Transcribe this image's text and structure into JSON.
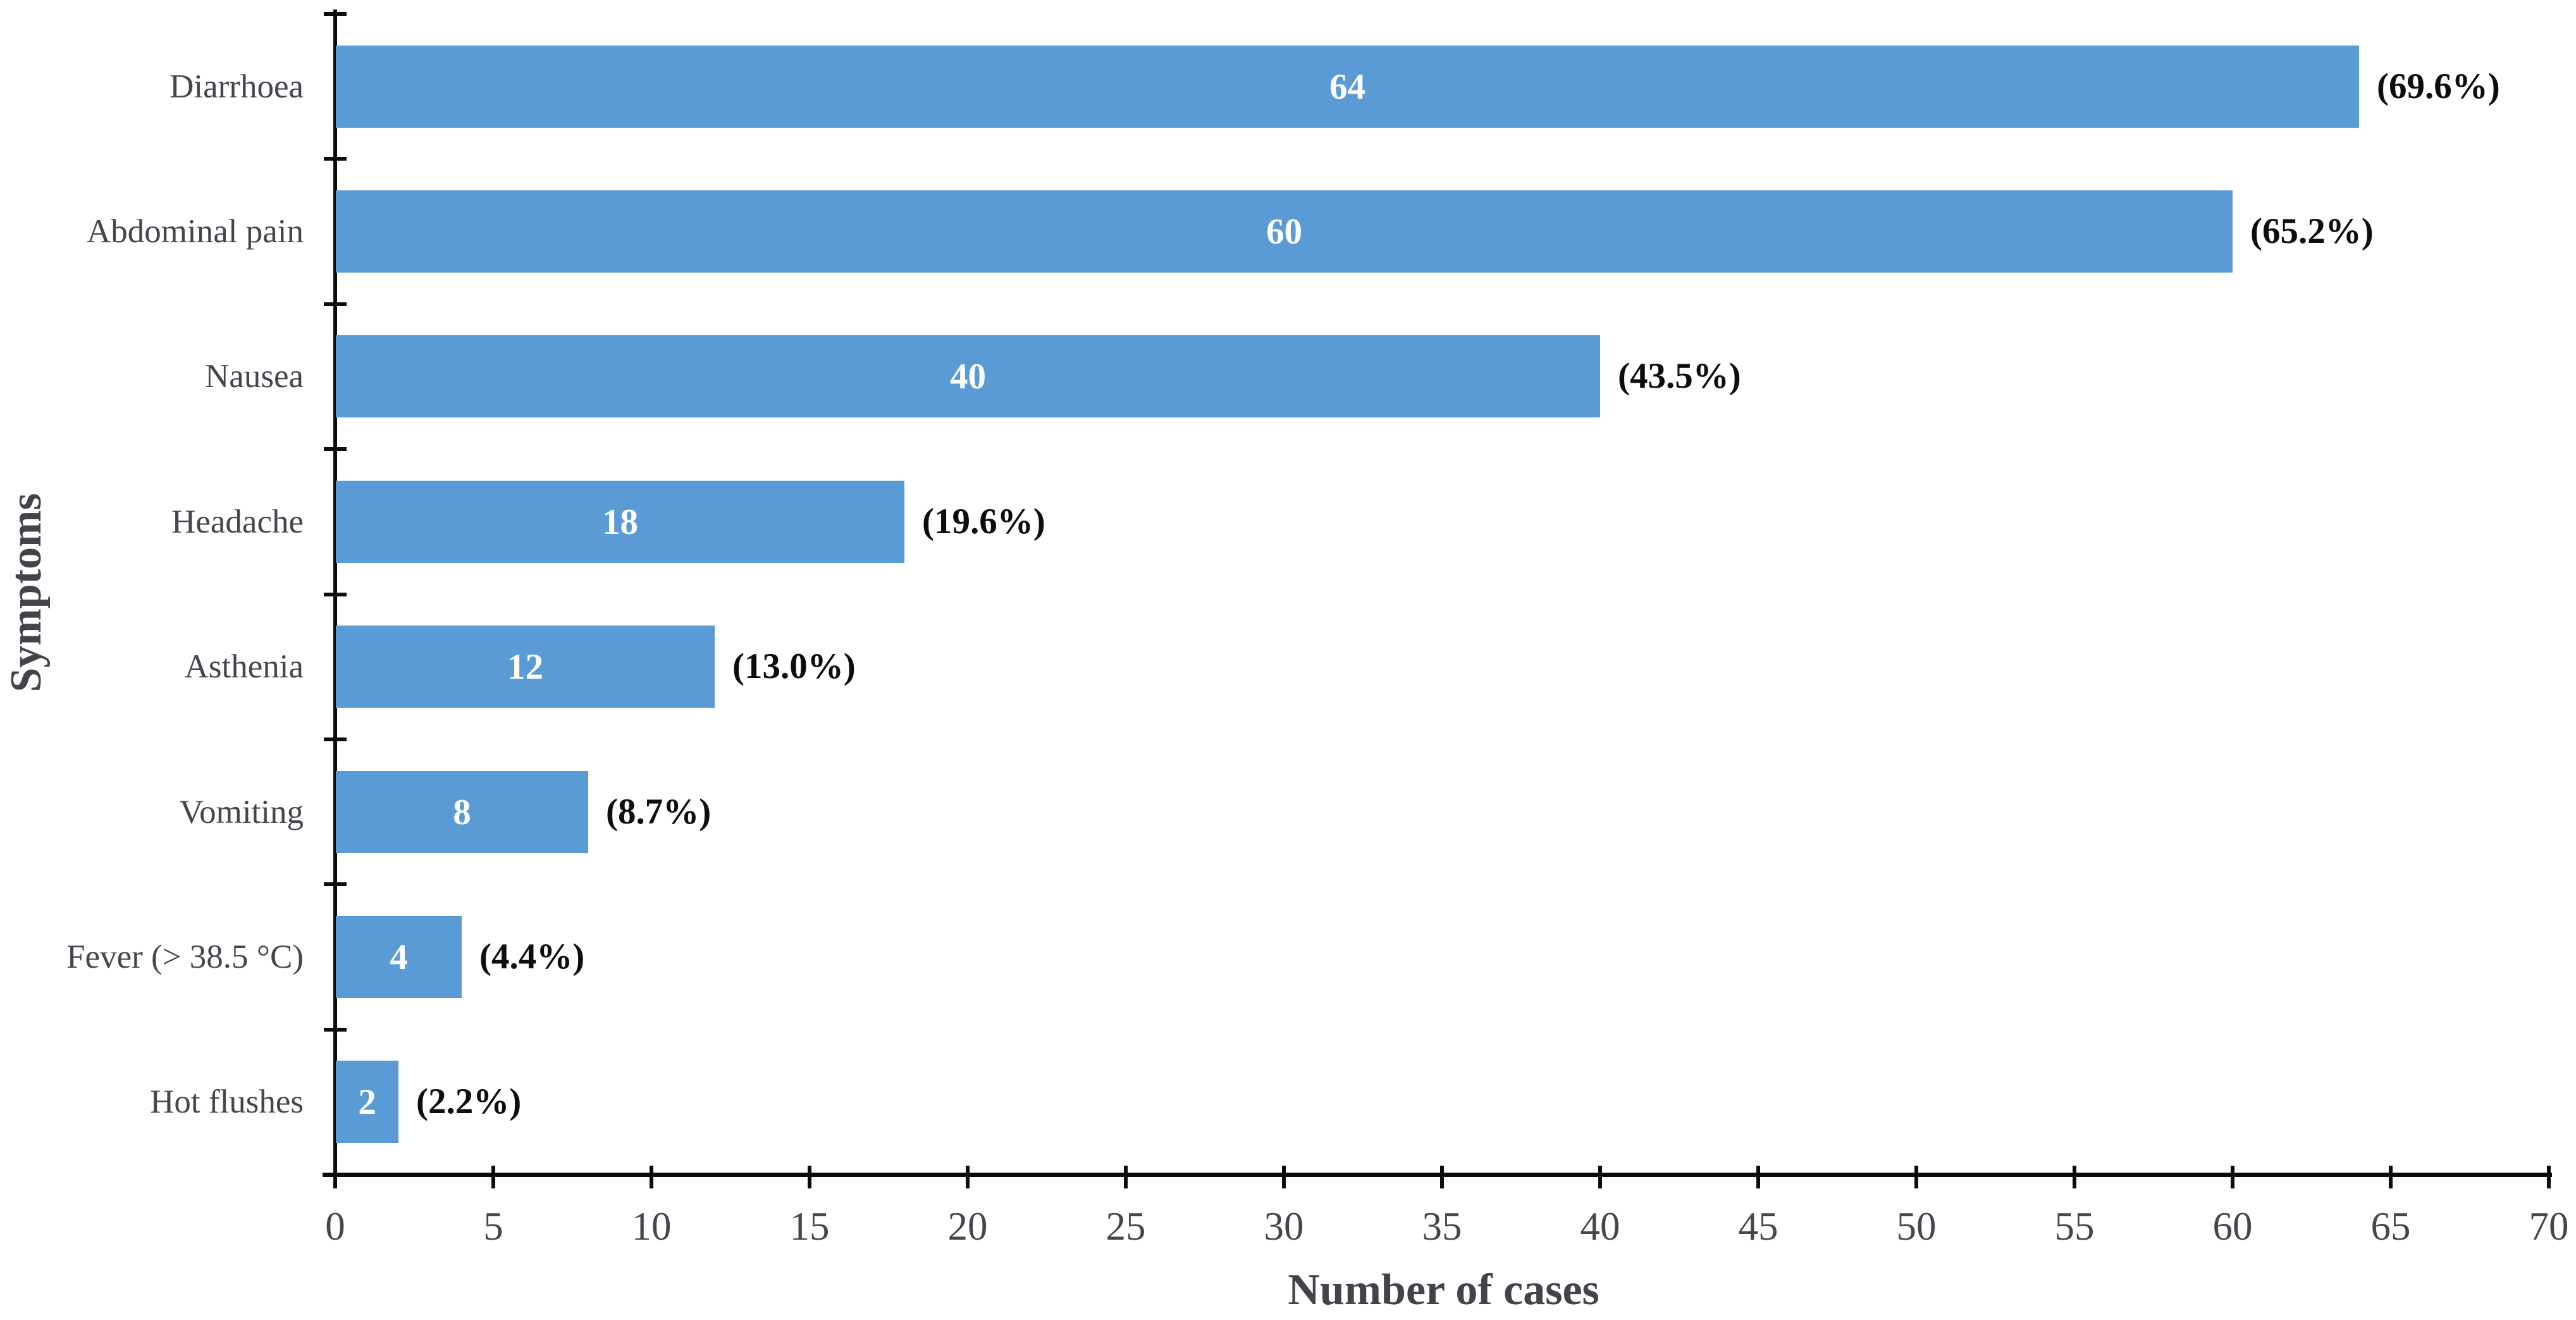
{
  "figure": {
    "background": "#ffffff"
  },
  "chart_data": {
    "type": "bar",
    "orientation": "horizontal",
    "title": "",
    "xlabel": "Number of cases",
    "ylabel": "Symptoms",
    "categories": [
      "Diarrhoea",
      "Abdominal pain",
      "Nausea",
      "Headache",
      "Asthenia",
      "Vomiting",
      "Fever (> 38.5 °C)",
      "Hot flushes"
    ],
    "values": [
      64,
      60,
      40,
      18,
      12,
      8,
      4,
      2
    ],
    "value_labels": [
      "64",
      "60",
      "40",
      "18",
      "12",
      "8",
      "4",
      "2"
    ],
    "percents": [
      69.6,
      65.2,
      43.5,
      19.6,
      13.0,
      8.7,
      4.4,
      2.2
    ],
    "percent_labels": [
      "(69.6%)",
      "(65.2%)",
      "(43.5%)",
      "(19.6%)",
      "(13.0%)",
      "(8.7%)",
      "(4.4%)",
      "(2.2%)"
    ],
    "xlim": [
      0,
      70
    ],
    "x_ticks": [
      0,
      5,
      10,
      15,
      20,
      25,
      30,
      35,
      40,
      45,
      50,
      55,
      60,
      65,
      70
    ],
    "grid": false,
    "legend": null,
    "bar_color": "#5B9BD5",
    "value_label_color": "#ffffff",
    "percent_label_color": "#0d0d0d",
    "tick_label_color": "#45454e",
    "axis_title_color": "#43434b",
    "axis_color": "#0b0b0b"
  }
}
